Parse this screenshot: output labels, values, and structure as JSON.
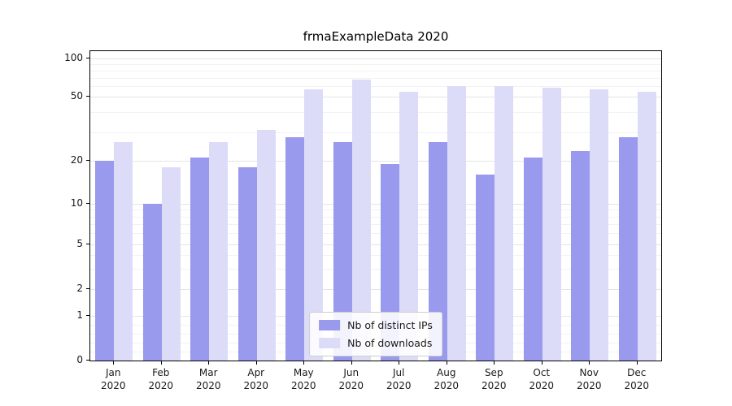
{
  "title": "frmaExampleData 2020",
  "chart_data": {
    "type": "bar",
    "title": "frmaExampleData 2020",
    "yscale": "symlog",
    "grid": true,
    "legend_position": "lower center",
    "ylim": [
      0,
      100
    ],
    "y_ticks": [
      0,
      1,
      2,
      5,
      10,
      20,
      50,
      100
    ],
    "categories": [
      "Jan\n2020",
      "Feb\n2020",
      "Mar\n2020",
      "Apr\n2020",
      "May\n2020",
      "Jun\n2020",
      "Jul\n2020",
      "Aug\n2020",
      "Sep\n2020",
      "Oct\n2020",
      "Nov\n2020",
      "Dec\n2020"
    ],
    "series": [
      {
        "name": "Nb of distinct IPs",
        "color": "#9999ee",
        "values": [
          20,
          10,
          21,
          18,
          28,
          26,
          19,
          26,
          16,
          21,
          23,
          28
        ]
      },
      {
        "name": "Nb of downloads",
        "color": "#dcdcf8",
        "values": [
          26,
          18,
          26,
          31,
          57,
          68,
          55,
          61,
          61,
          59,
          57,
          55
        ]
      }
    ]
  },
  "legend": {
    "items": [
      {
        "label": "Nb of distinct IPs",
        "color": "#9999ee"
      },
      {
        "label": "Nb of downloads",
        "color": "#dcdcf8"
      }
    ]
  }
}
